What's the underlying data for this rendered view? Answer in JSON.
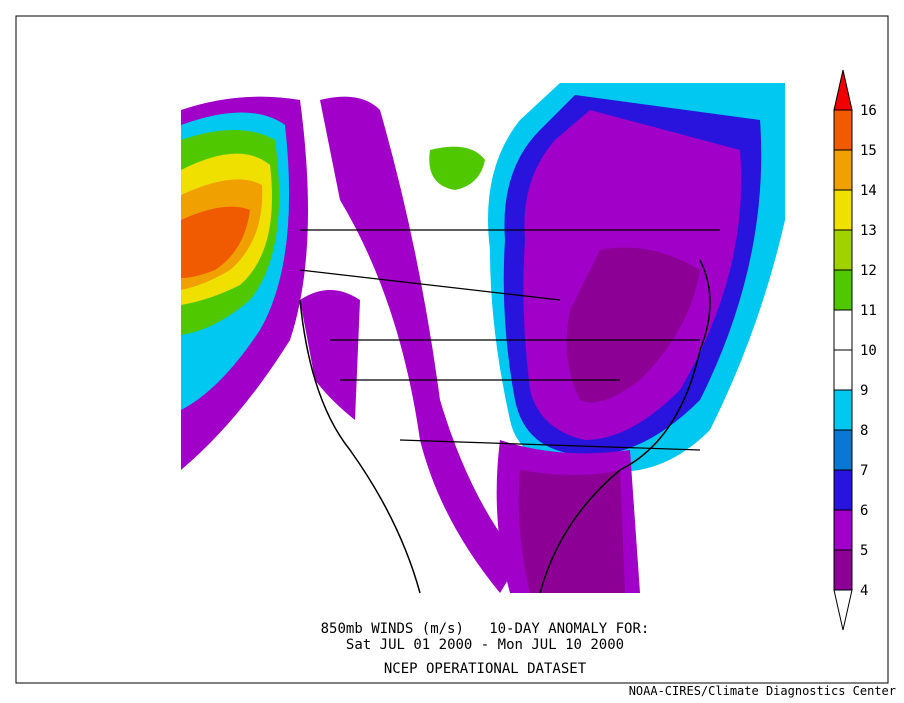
{
  "caption": {
    "line1": "850mb WINDS (m/s)   10-DAY ANOMALY FOR:",
    "line2": "Sat JUL 01 2000 - Mon JUL 10 2000",
    "line3": "NCEP OPERATIONAL DATASET"
  },
  "credit": "NOAA-CIRES/Climate Diagnostics Center",
  "colorbar": {
    "levels": [
      4,
      5,
      6,
      7,
      8,
      9,
      10,
      11,
      12,
      13,
      14,
      15,
      16
    ],
    "colors": [
      "#ffffff",
      "#8c0096",
      "#a000c8",
      "#2814dc",
      "#0a78d2",
      "#00c8f0",
      "#ffffff",
      "#ffffff",
      "#50c800",
      "#a0d200",
      "#f0e000",
      "#f0a000",
      "#f05a00",
      "#f00000"
    ]
  }
}
